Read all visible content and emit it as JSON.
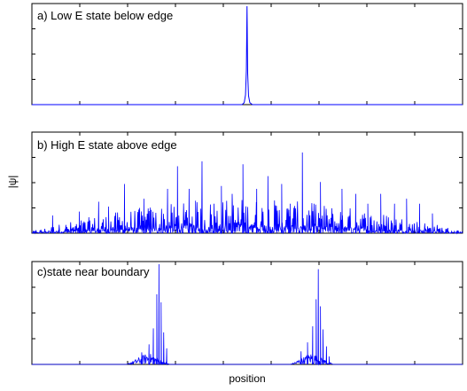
{
  "figure": {
    "ylabel": "|ψ|",
    "xlabel": "position",
    "line_color": "#0000ff",
    "axes_color": "#000000",
    "background": "#ffffff"
  },
  "chart_data": [
    {
      "type": "line",
      "title": "a) Low E state below edge",
      "xlim": [
        0,
        1
      ],
      "ylim": [
        0,
        1
      ],
      "grid": false,
      "series": [
        {
          "values": [
            [
              0.0,
              0.0
            ],
            [
              0.488,
              0.0
            ],
            [
              0.493,
              0.02
            ],
            [
              0.496,
              0.1
            ],
            [
              0.498,
              0.35
            ],
            [
              0.4995,
              1.0
            ],
            [
              0.501,
              0.32
            ],
            [
              0.503,
              0.09
            ],
            [
              0.506,
              0.02
            ],
            [
              0.512,
              0.0
            ],
            [
              1.0,
              0.0
            ]
          ]
        }
      ]
    },
    {
      "type": "line",
      "title": "b) High E state above edge",
      "xlim": [
        0,
        1
      ],
      "ylim": [
        0,
        1
      ],
      "grid": false,
      "envelope": [
        [
          0.0,
          0.02
        ],
        [
          0.05,
          0.08
        ],
        [
          0.1,
          0.13
        ],
        [
          0.15,
          0.18
        ],
        [
          0.2,
          0.22
        ],
        [
          0.25,
          0.26
        ],
        [
          0.3,
          0.29
        ],
        [
          0.35,
          0.31
        ],
        [
          0.4,
          0.33
        ],
        [
          0.45,
          0.35
        ],
        [
          0.5,
          0.36
        ],
        [
          0.55,
          0.35
        ],
        [
          0.6,
          0.33
        ],
        [
          0.65,
          0.31
        ],
        [
          0.7,
          0.29
        ],
        [
          0.75,
          0.26
        ],
        [
          0.8,
          0.22
        ],
        [
          0.85,
          0.18
        ],
        [
          0.9,
          0.13
        ],
        [
          0.95,
          0.08
        ],
        [
          1.0,
          0.02
        ]
      ],
      "peaks": [
        [
          0.048,
          0.18
        ],
        [
          0.11,
          0.22
        ],
        [
          0.155,
          0.32
        ],
        [
          0.178,
          0.27
        ],
        [
          0.215,
          0.5
        ],
        [
          0.26,
          0.35
        ],
        [
          0.275,
          0.26
        ],
        [
          0.315,
          0.45
        ],
        [
          0.338,
          0.68
        ],
        [
          0.365,
          0.45
        ],
        [
          0.38,
          0.33
        ],
        [
          0.395,
          0.73
        ],
        [
          0.423,
          0.3
        ],
        [
          0.44,
          0.48
        ],
        [
          0.465,
          0.4
        ],
        [
          0.49,
          0.7
        ],
        [
          0.522,
          0.45
        ],
        [
          0.548,
          0.58
        ],
        [
          0.58,
          0.5
        ],
        [
          0.6,
          0.3
        ],
        [
          0.628,
          0.82
        ],
        [
          0.655,
          0.3
        ],
        [
          0.67,
          0.52
        ],
        [
          0.72,
          0.45
        ],
        [
          0.752,
          0.4
        ],
        [
          0.78,
          0.3
        ],
        [
          0.81,
          0.4
        ],
        [
          0.842,
          0.3
        ],
        [
          0.87,
          0.35
        ],
        [
          0.9,
          0.3
        ],
        [
          0.93,
          0.2
        ]
      ]
    },
    {
      "type": "line",
      "title": "c)state near boundary",
      "xlim": [
        0,
        1
      ],
      "ylim": [
        0,
        1
      ],
      "grid": false,
      "clusters": [
        {
          "range": [
            0.22,
            0.32
          ],
          "peaks": [
            [
              0.255,
              0.12
            ],
            [
              0.272,
              0.2
            ],
            [
              0.282,
              0.36
            ],
            [
              0.29,
              0.7
            ],
            [
              0.295,
              1.0
            ],
            [
              0.3,
              0.62
            ],
            [
              0.306,
              0.32
            ],
            [
              0.313,
              0.16
            ]
          ]
        },
        {
          "range": [
            0.6,
            0.7
          ],
          "peaks": [
            [
              0.625,
              0.13
            ],
            [
              0.64,
              0.22
            ],
            [
              0.652,
              0.38
            ],
            [
              0.66,
              0.65
            ],
            [
              0.665,
              0.95
            ],
            [
              0.67,
              0.58
            ],
            [
              0.676,
              0.35
            ],
            [
              0.684,
              0.18
            ],
            [
              0.69,
              0.08
            ]
          ]
        }
      ]
    }
  ]
}
